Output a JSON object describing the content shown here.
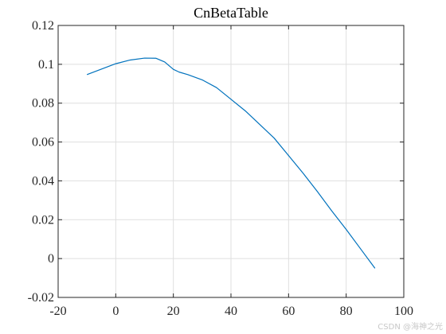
{
  "chart_data": {
    "type": "line",
    "title": "CnBetaTable",
    "xlabel": "",
    "ylabel": "",
    "xlim": [
      -20,
      100
    ],
    "ylim": [
      -0.02,
      0.12
    ],
    "xticks": [
      -20,
      0,
      20,
      40,
      60,
      80,
      100
    ],
    "xtick_labels": [
      "-20",
      "0",
      "20",
      "40",
      "60",
      "80",
      "100"
    ],
    "yticks": [
      -0.02,
      0,
      0.02,
      0.04,
      0.06,
      0.08,
      0.1,
      0.12
    ],
    "ytick_labels": [
      "-0.02",
      "0",
      "0.02",
      "0.04",
      "0.06",
      "0.08",
      "0.1",
      "0.12"
    ],
    "grid": true,
    "series": [
      {
        "color": "#0072BD",
        "x": [
          -10,
          -5,
          0,
          5,
          10,
          14,
          17,
          20,
          22,
          25,
          30,
          35,
          40,
          45,
          50,
          55,
          60,
          65,
          70,
          75,
          80,
          85,
          90
        ],
        "y": [
          0.0947,
          0.0975,
          0.1003,
          0.1022,
          0.1032,
          0.1031,
          0.1012,
          0.0974,
          0.096,
          0.0947,
          0.092,
          0.088,
          0.082,
          0.076,
          0.069,
          0.062,
          0.053,
          0.044,
          0.0345,
          0.0245,
          0.015,
          0.005,
          -0.005
        ]
      }
    ]
  },
  "watermark": "CSDN @海神之光"
}
